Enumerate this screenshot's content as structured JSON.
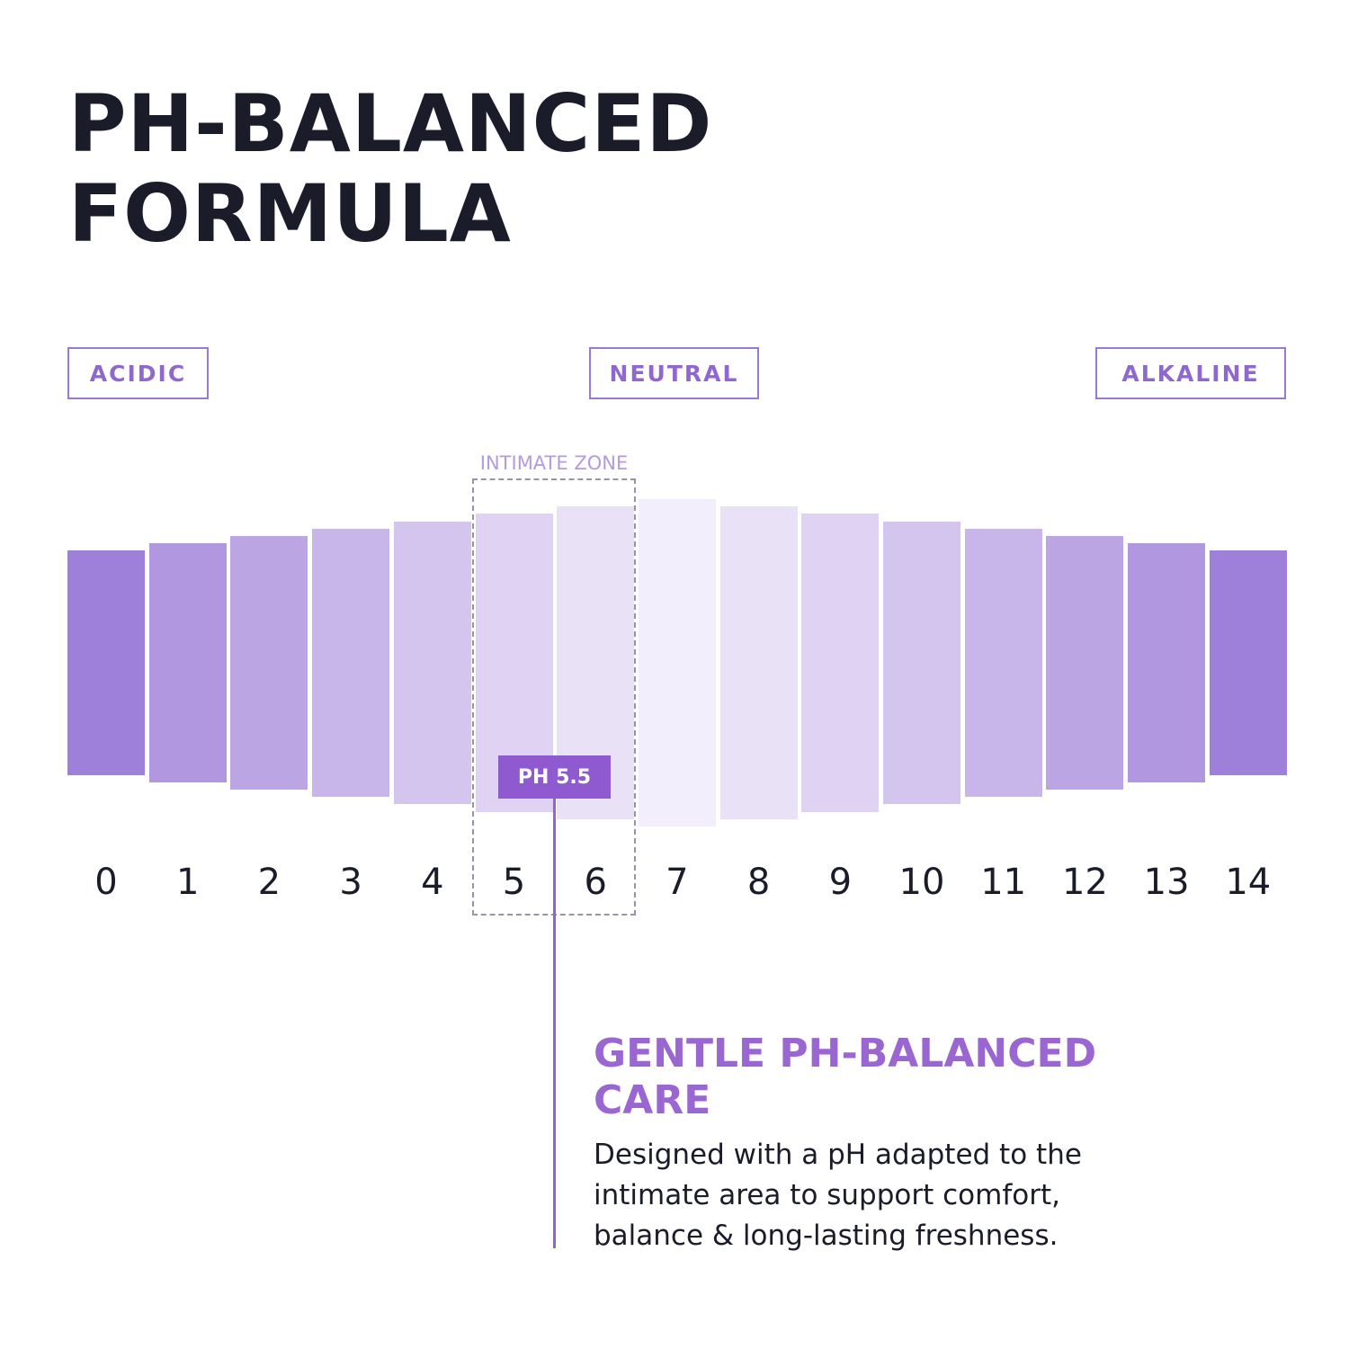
{
  "title": {
    "line1": "PH-BALANCED",
    "line2": "FORMULA"
  },
  "zones": {
    "acidic": "ACIDIC",
    "neutral": "NEUTRAL",
    "alkaline": "ALKALINE"
  },
  "intimate_zone": {
    "label": "INTIMATE ZONE",
    "range": [
      5,
      6
    ]
  },
  "marker": {
    "label": "PH 5.5",
    "value": 5.5
  },
  "chart_data": {
    "type": "bar",
    "categories": [
      "0",
      "1",
      "2",
      "3",
      "4",
      "5",
      "6",
      "7",
      "8",
      "9",
      "10",
      "11",
      "12",
      "13",
      "14"
    ],
    "x": [
      0,
      1,
      2,
      3,
      4,
      5,
      6,
      7,
      8,
      9,
      10,
      11,
      12,
      13,
      14
    ],
    "colors": [
      "#9e7fd9",
      "#b097df",
      "#bba5e3",
      "#c8b5e9",
      "#d4c5ee",
      "#dfd2f2",
      "#e9e1f6",
      "#f3eefb",
      "#e9e1f6",
      "#dfd2f2",
      "#d4c5ee",
      "#c8b5e9",
      "#bba5e3",
      "#b097df",
      "#9e7fd9"
    ]
  },
  "care": {
    "title_line1": "GENTLE PH-BALANCED",
    "title_line2": "CARE",
    "text_line1": "Designed with a pH adapted to the",
    "text_line2": "intimate area to support comfort,",
    "text_line3": "balance & long-lasting freshness."
  },
  "colors": {
    "accent": "#8f5ad0",
    "dark_text": "#1b1c2a"
  }
}
